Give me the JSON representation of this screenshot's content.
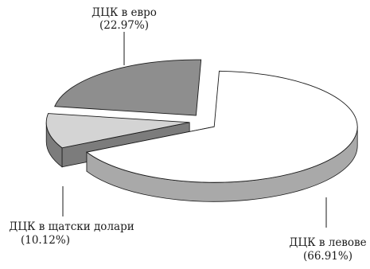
{
  "chart_data": {
    "type": "pie",
    "style": "3d-exploded",
    "slices": [
      {
        "label": "ДЦК в левове",
        "pct_label": "(66.91%)",
        "value": 66.91,
        "color": "#ffffff",
        "side_color": "#a9a9a9"
      },
      {
        "label": "ДЦК в щатски долари",
        "pct_label": "(10.12%)",
        "value": 10.12,
        "color": "#d4d4d4",
        "side_color": "#7c7c7c"
      },
      {
        "label": "ДЦК в евро",
        "pct_label": "(22.97%)",
        "value": 22.97,
        "color": "#8e8e8e",
        "side_color": "#5a5a5a"
      }
    ]
  },
  "labels": {
    "leva": {
      "name": "ДЦК в левове",
      "pct": "(66.91%)"
    },
    "usd": {
      "name": "ДЦК в щатски долари",
      "pct": "(10.12%)"
    },
    "eur": {
      "name": "ДЦК в евро",
      "pct": "(22.97%)"
    }
  }
}
